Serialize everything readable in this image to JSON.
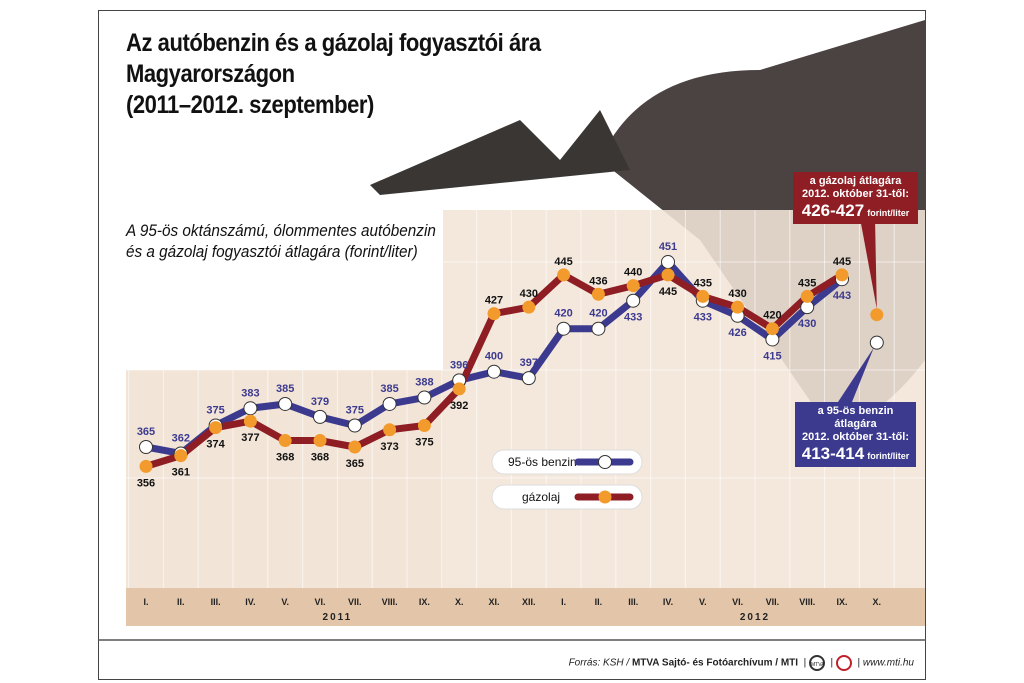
{
  "title_lines": [
    "Az autóbenzin és a gázolaj fogyasztói ára",
    "Magyarországon",
    "(2011–2012. szeptember)"
  ],
  "chart_data": {
    "type": "line",
    "subtitle_lines": [
      "A 95-ös oktánszámú, ólommentes autóbenzin",
      "és a gázolaj fogyasztói átlagára (forint/liter)"
    ],
    "categories": [
      "I.",
      "II.",
      "III.",
      "IV.",
      "V.",
      "VI.",
      "VII.",
      "VIII.",
      "IX.",
      "X.",
      "XI.",
      "XII.",
      "I.",
      "II.",
      "III.",
      "IV.",
      "V.",
      "VI.",
      "VII.",
      "VIII.",
      "IX.",
      "X."
    ],
    "years": [
      {
        "label": "2011",
        "months": "I.–XII."
      },
      {
        "label": "2012",
        "months": "I.–X."
      }
    ],
    "series": [
      {
        "name": "95-ös benzin",
        "color": "#3c3a8f",
        "marker": "#ffffff",
        "label_color": "#3c3a8f",
        "values": [
          365,
          362,
          375,
          383,
          385,
          379,
          375,
          385,
          388,
          396,
          400,
          397,
          420,
          420,
          433,
          451,
          433,
          426,
          415,
          430,
          443,
          null
        ],
        "projected": {
          "month": "X. 2012",
          "value": 413.5
        }
      },
      {
        "name": "gázolaj",
        "color": "#8e1d24",
        "marker": "#f39a2c",
        "label_color": "#111111",
        "values": [
          356,
          361,
          374,
          377,
          368,
          368,
          365,
          373,
          375,
          392,
          427,
          430,
          445,
          436,
          440,
          445,
          435,
          430,
          420,
          435,
          445,
          null
        ],
        "projected": {
          "month": "X. 2012",
          "value": 426.5
        }
      }
    ],
    "ylim": [
      340,
      460
    ],
    "annotations": [
      {
        "series": "gázolaj",
        "lines": [
          "a gázolaj átlagára",
          "2012. október 31-től:"
        ],
        "value": "426-427",
        "unit": "forint/liter",
        "color": "#8e1d24"
      },
      {
        "series": "95-ös benzin",
        "lines": [
          "a 95-ös benzin átlagára",
          "2012. október 31-től:"
        ],
        "value": "413-414",
        "unit": "forint/liter",
        "color": "#3c3a8f"
      }
    ],
    "legend": "center"
  },
  "footer": {
    "source_label": "Forrás: KSH /",
    "source_bold": "MTVA Sajtó- és Fotóarchívum / MTI",
    "url": "www.mti.hu",
    "logo1": "MTVA",
    "logo2": "MTI"
  }
}
